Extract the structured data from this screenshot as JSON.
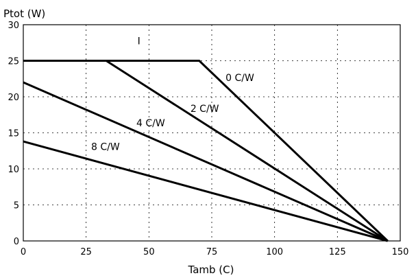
{
  "chart_data": {
    "type": "line",
    "title": "",
    "xlabel": "Tamb  (C)",
    "ylabel": "Ptot (W)",
    "xlim": [
      0,
      150
    ],
    "ylim": [
      0,
      30
    ],
    "xticks": [
      0,
      25,
      50,
      75,
      100,
      125,
      150
    ],
    "yticks": [
      0,
      5,
      10,
      15,
      20,
      25,
      30
    ],
    "grid": true,
    "legend": "none",
    "series": [
      {
        "name": "0 C/W",
        "x": [
          0,
          70,
          145
        ],
        "y": [
          25,
          25,
          0
        ]
      },
      {
        "name": "2 C/W",
        "x": [
          0,
          33,
          145
        ],
        "y": [
          25,
          25,
          0
        ]
      },
      {
        "name": "4 C/W",
        "x": [
          0,
          145
        ],
        "y": [
          22,
          0
        ]
      },
      {
        "name": "8 C/W",
        "x": [
          0,
          145
        ],
        "y": [
          13.8,
          0
        ]
      }
    ],
    "annotations": [
      {
        "text": "I",
        "x": 46,
        "y": 27.3
      }
    ]
  }
}
